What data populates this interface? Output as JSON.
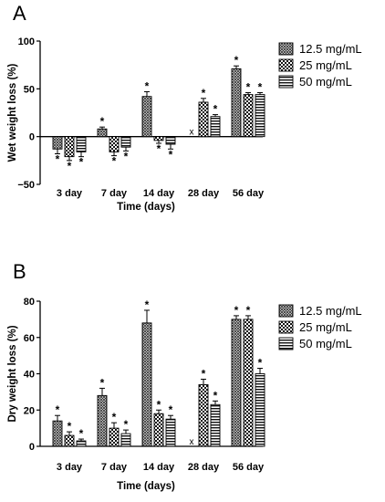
{
  "chart_data": [
    {
      "type": "bar",
      "panel": "A",
      "title": "",
      "xlabel": "Time (days)",
      "ylabel": "Wet weight loss (%)",
      "ylim": [
        -50,
        100
      ],
      "yticks": [
        -50,
        0,
        50,
        100
      ],
      "tick_labels": [
        "−50",
        "0",
        "50",
        "100"
      ],
      "categories": [
        "3 day",
        "7 day",
        "14 day",
        "28 day",
        "56 day"
      ],
      "legend_position": "top-right",
      "series": [
        {
          "name": "12.5 mg/mL",
          "pattern": "cross-hatch",
          "values": [
            -13,
            8,
            42,
            null,
            71
          ],
          "errors": [
            5,
            2,
            5,
            0,
            3
          ],
          "significant": [
            true,
            true,
            true,
            false,
            true
          ],
          "missing_label": "x"
        },
        {
          "name": "25 mg/mL",
          "pattern": "checker",
          "values": [
            -21,
            -16,
            -4,
            36,
            44
          ],
          "errors": [
            4,
            4,
            3,
            4,
            2
          ],
          "significant": [
            true,
            true,
            true,
            true,
            true
          ]
        },
        {
          "name": "50 mg/mL",
          "pattern": "horizontal-stripes",
          "values": [
            -16,
            -11,
            -8,
            21,
            44
          ],
          "errors": [
            5,
            4,
            5,
            2,
            2
          ],
          "significant": [
            true,
            true,
            true,
            true,
            true
          ]
        }
      ]
    },
    {
      "type": "bar",
      "panel": "B",
      "title": "",
      "xlabel": "Time (days)",
      "ylabel": "Dry weight loss (%)",
      "ylim": [
        0,
        80
      ],
      "yticks": [
        0,
        20,
        40,
        60,
        80
      ],
      "tick_labels": [
        "0",
        "20",
        "40",
        "60",
        "80"
      ],
      "categories": [
        "3 day",
        "7 day",
        "14 day",
        "28 day",
        "56 day"
      ],
      "legend_position": "top-right",
      "series": [
        {
          "name": "12.5 mg/mL",
          "pattern": "cross-hatch",
          "values": [
            14,
            28,
            68,
            null,
            70
          ],
          "errors": [
            3,
            4,
            7,
            0,
            2
          ],
          "significant": [
            true,
            true,
            true,
            false,
            true
          ],
          "missing_label": "x"
        },
        {
          "name": "25 mg/mL",
          "pattern": "checker",
          "values": [
            6,
            10,
            18,
            34,
            70
          ],
          "errors": [
            2,
            3,
            2,
            3,
            2
          ],
          "significant": [
            true,
            true,
            true,
            true,
            true
          ]
        },
        {
          "name": "50 mg/mL",
          "pattern": "horizontal-stripes",
          "values": [
            3,
            7,
            15,
            23,
            40
          ],
          "errors": [
            1,
            2,
            2,
            2,
            3
          ],
          "significant": [
            true,
            true,
            true,
            true,
            true
          ]
        }
      ]
    }
  ],
  "star_symbol": "*"
}
